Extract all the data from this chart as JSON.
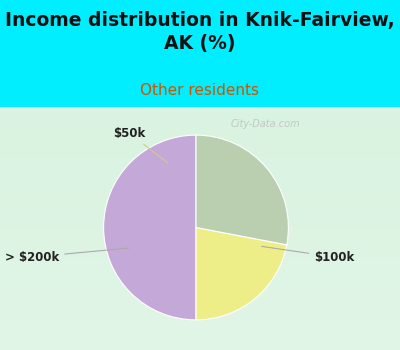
{
  "title": "Income distribution in Knik-Fairview,\nAK (%)",
  "subtitle": "Other residents",
  "title_color": "#111111",
  "subtitle_color": "#cc5500",
  "bg_cyan": "#00EEFF",
  "chart_bg": "#e8f5ee",
  "slices": [
    50.0,
    22.0,
    28.0
  ],
  "labels": [
    "$100k",
    "$50k",
    "> $200k"
  ],
  "colors": [
    "#C4A8D8",
    "#EEEE88",
    "#BACFB0"
  ],
  "startangle": 90,
  "watermark": "City-Data.com",
  "title_fontsize": 13.5,
  "subtitle_fontsize": 11
}
